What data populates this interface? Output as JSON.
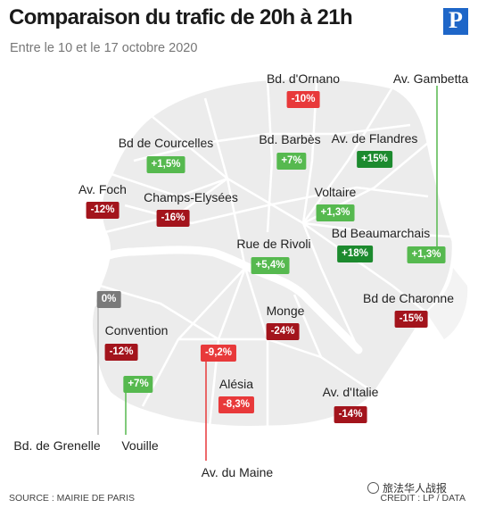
{
  "title": "Comparaison du trafic de 20h à 21h",
  "subtitle": "Entre le 10 et le 17 octobre 2020",
  "logo": "P",
  "source": "SOURCE : MAIRIE DE PARIS",
  "credit": "CREDIT : LP / DATA",
  "wechat": "旅法华人战报",
  "colors": {
    "dark_red": "#a3141c",
    "red": "#e8393a",
    "light_green": "#56b94f",
    "dark_green": "#1c8a2e",
    "gray": "#7a7a7a",
    "map_fill": "#ececec"
  },
  "places": [
    {
      "name": "Bd. d'Ornano",
      "value": "-10%",
      "color": "red"
    },
    {
      "name": "Av. Gambetta",
      "value": "+1,3%",
      "color": "light_green"
    },
    {
      "name": "Bd de Courcelles",
      "value": "+1,5%",
      "color": "light_green"
    },
    {
      "name": "Bd. Barbès",
      "value": "+7%",
      "color": "light_green"
    },
    {
      "name": "Av. de Flandres",
      "value": "+15%",
      "color": "dark_green"
    },
    {
      "name": "Av. Foch",
      "value": "-12%",
      "color": "dark_red"
    },
    {
      "name": "Champs-Elysées",
      "value": "-16%",
      "color": "dark_red"
    },
    {
      "name": "Voltaire",
      "value": "+1,3%",
      "color": "light_green"
    },
    {
      "name": "Rue de Rivoli",
      "value": "+5,4%",
      "color": "light_green"
    },
    {
      "name": "Bd Beaumarchais",
      "value": "+18%",
      "color": "dark_green"
    },
    {
      "name": "Bd de Charonne",
      "value": "-15%",
      "color": "dark_red"
    },
    {
      "name": "Bd. de Grenelle",
      "value": "0%",
      "color": "gray"
    },
    {
      "name": "Convention",
      "value": "-12%",
      "color": "dark_red"
    },
    {
      "name": "Monge",
      "value": "-24%",
      "color": "dark_red"
    },
    {
      "name": "Av. du Maine",
      "value": "-9,2%",
      "color": "red"
    },
    {
      "name": "Vouille",
      "value": "+7%",
      "color": "light_green"
    },
    {
      "name": "Alésia",
      "value": "-8,3%",
      "color": "red"
    },
    {
      "name": "Av. d'Italie",
      "value": "-14%",
      "color": "dark_red"
    }
  ]
}
